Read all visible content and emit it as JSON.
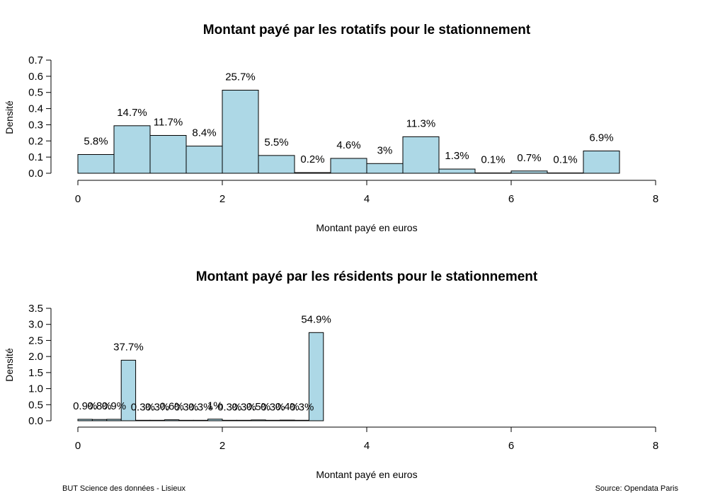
{
  "footer": {
    "left": "BUT Science des données - Lisieux",
    "right": "Source: Opendata Paris"
  },
  "chart_data": [
    {
      "type": "bar",
      "title": "Montant payé par les rotatifs pour le stationnement",
      "xlabel": "Montant payé en euros",
      "ylabel": "Densité",
      "xlim": [
        0,
        8
      ],
      "ylim": [
        0,
        0.7
      ],
      "x_ticks": [
        "0",
        "2",
        "4",
        "6",
        "8"
      ],
      "y_ticks": [
        "0.0",
        "0.1",
        "0.2",
        "0.3",
        "0.4",
        "0.5",
        "0.6",
        "0.7"
      ],
      "bin_width": 0.5,
      "bins_start": [
        0,
        0.5,
        1,
        1.5,
        2,
        2.5,
        3,
        3.5,
        4,
        4.5,
        5,
        5.5,
        6,
        6.5,
        7
      ],
      "values": [
        0.116,
        0.294,
        0.234,
        0.168,
        0.514,
        0.11,
        0.004,
        0.092,
        0.06,
        0.226,
        0.026,
        0.002,
        0.014,
        0.002,
        0.138
      ],
      "labels": [
        "5.8%",
        "14.7%",
        "11.7%",
        "8.4%",
        "25.7%",
        "5.5%",
        "0.2%",
        "4.6%",
        "3%",
        "11.3%",
        "1.3%",
        "0.1%",
        "0.7%",
        "0.1%",
        "6.9%"
      ],
      "bar_color": "#add8e6"
    },
    {
      "type": "bar",
      "title": "Montant payé par les résidents pour le stationnement",
      "xlabel": "Montant payé en euros",
      "ylabel": "Densité",
      "xlim": [
        0,
        8
      ],
      "ylim": [
        0,
        3.5
      ],
      "x_ticks": [
        "0",
        "2",
        "4",
        "6",
        "8"
      ],
      "y_ticks": [
        "0.0",
        "0.5",
        "1.0",
        "1.5",
        "2.0",
        "2.5",
        "3.0",
        "3.5"
      ],
      "bin_width": 0.2,
      "bins_start": [
        0,
        0.2,
        0.4,
        0.6,
        0.8,
        1.0,
        1.2,
        1.4,
        1.6,
        1.8,
        2.0,
        2.2,
        2.4,
        2.6,
        2.8,
        3.0,
        3.2
      ],
      "values": [
        0.045,
        0.04,
        0.045,
        1.885,
        0.015,
        0.015,
        0.03,
        0.015,
        0.015,
        0.05,
        0.015,
        0.015,
        0.025,
        0.015,
        0.02,
        0.015,
        2.745
      ],
      "labels": [
        "0.9%",
        "0.8%",
        "0.9%",
        "37.7%",
        "0.3%",
        "0.3%",
        "0.6%",
        "0.3%",
        "0.3%",
        "1%",
        "0.3%",
        "0.3%",
        "0.5%",
        "0.3%",
        "0.4%",
        "0.3%",
        "54.9%"
      ],
      "bar_color": "#add8e6"
    }
  ]
}
